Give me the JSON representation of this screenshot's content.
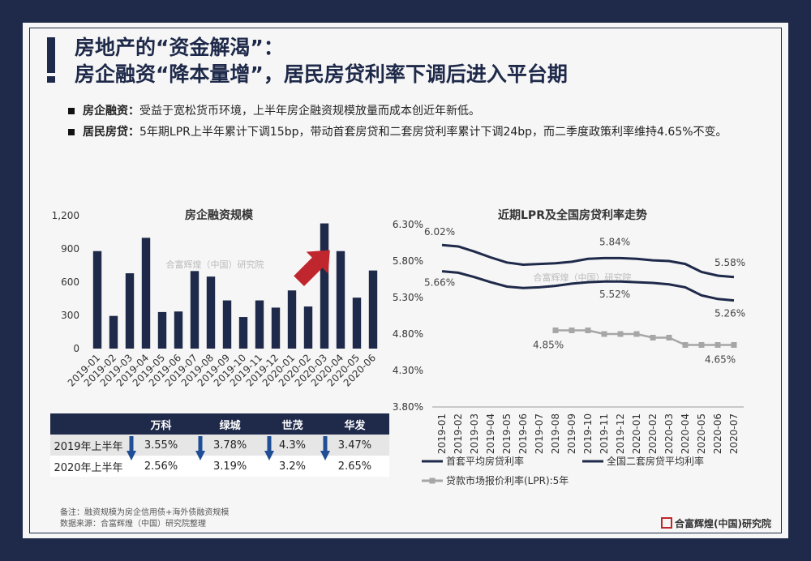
{
  "title": {
    "line1": "房地产的“资金解渴”：",
    "line2": "房企融资“降本量增”，居民房贷利率下调后进入平台期"
  },
  "bullets": [
    {
      "key": "房企融资：",
      "text": "受益于宽松货币环境，上半年房企融资规模放量而成本创近年新低。"
    },
    {
      "key": "居民房贷：",
      "text": "5年期LPR上半年累计下调15bp，带动首套房贷和二套房贷利率累计下调24bp，而二季度政策利率维持4.65%不变。"
    }
  ],
  "watermark": "合富辉煌（中国）研究院",
  "colors": {
    "navy": "#1f2a4a",
    "gray": "#a6a6a6",
    "red": "#c0262d",
    "arrow_blue": "#1f4e96"
  },
  "chart_data": [
    {
      "type": "bar",
      "title": "房企融资规模",
      "categories": [
        "2019-01",
        "2019-02",
        "2019-03",
        "2019-04",
        "2019-05",
        "2019-06",
        "2019-07",
        "2019-08",
        "2019-09",
        "2019-10",
        "2019-11",
        "2019-12",
        "2020-01",
        "2020-02",
        "2020-03",
        "2020-04",
        "2020-05",
        "2020-06"
      ],
      "values": [
        880,
        295,
        680,
        1000,
        330,
        335,
        700,
        650,
        435,
        285,
        435,
        370,
        525,
        380,
        1130,
        880,
        460,
        705
      ],
      "ylim": [
        0,
        1200
      ],
      "yticks": [
        "1,200",
        "900",
        "600",
        "300",
        "0"
      ],
      "ytick_values": [
        1200,
        900,
        600,
        300,
        0
      ],
      "annotation": "red arrow pointing to 2020-03"
    },
    {
      "type": "line",
      "title": "近期LPR及全国房贷利率走势",
      "x": [
        "2019-01",
        "2019-02",
        "2019-03",
        "2019-04",
        "2019-05",
        "2019-06",
        "2019-07",
        "2019-08",
        "2019-09",
        "2019-10",
        "2019-11",
        "2019-12",
        "2020-01",
        "2020-02",
        "2020-03",
        "2020-04",
        "2020-05",
        "2020-06",
        "2020-07"
      ],
      "ylim": [
        3.8,
        6.3
      ],
      "yticks": [
        "6.30%",
        "5.80%",
        "5.30%",
        "4.80%",
        "4.30%",
        "3.80%"
      ],
      "ytick_values": [
        6.3,
        5.8,
        5.3,
        4.8,
        4.3,
        3.8
      ],
      "series": [
        {
          "name": "首套平均房贷利率",
          "color": "#1f2a4a",
          "values": [
            5.66,
            5.64,
            5.58,
            5.51,
            5.45,
            5.43,
            5.44,
            5.46,
            5.49,
            5.51,
            5.52,
            5.52,
            5.51,
            5.5,
            5.48,
            5.44,
            5.33,
            5.28,
            5.26
          ]
        },
        {
          "name": "全国二套房贷平均利率",
          "color": "#1f2a4a",
          "values": [
            6.02,
            6.0,
            5.93,
            5.85,
            5.78,
            5.75,
            5.76,
            5.77,
            5.79,
            5.83,
            5.84,
            5.84,
            5.83,
            5.81,
            5.8,
            5.76,
            5.65,
            5.6,
            5.58
          ]
        },
        {
          "name": "贷款市场报价利率(LPR):5年",
          "color": "#a6a6a6",
          "values": [
            null,
            null,
            null,
            null,
            null,
            null,
            null,
            4.85,
            4.85,
            4.85,
            4.8,
            4.8,
            4.8,
            4.75,
            4.75,
            4.65,
            4.65,
            4.65,
            4.65
          ]
        }
      ],
      "labels": [
        "6.02%",
        "5.66%",
        "5.84%",
        "5.52%",
        "5.58%",
        "5.26%",
        "4.85%",
        "4.65%"
      ]
    }
  ],
  "table": {
    "headers": [
      "",
      "万科",
      "绿城",
      "世茂",
      "华发"
    ],
    "rows": [
      {
        "year": "2019年上半年",
        "values": [
          "3.55%",
          "3.78%",
          "4.3%",
          "3.47%"
        ]
      },
      {
        "year": "2020年上半年",
        "values": [
          "2.56%",
          "3.19%",
          "3.2%",
          "2.65%"
        ]
      }
    ]
  },
  "footnote": {
    "line1": "备注：融资规模为房企信用债+海外债融资规模",
    "line2": "数据来源：合富辉煌（中国）研究院整理"
  },
  "brand": "合富辉煌(中国)研究院"
}
